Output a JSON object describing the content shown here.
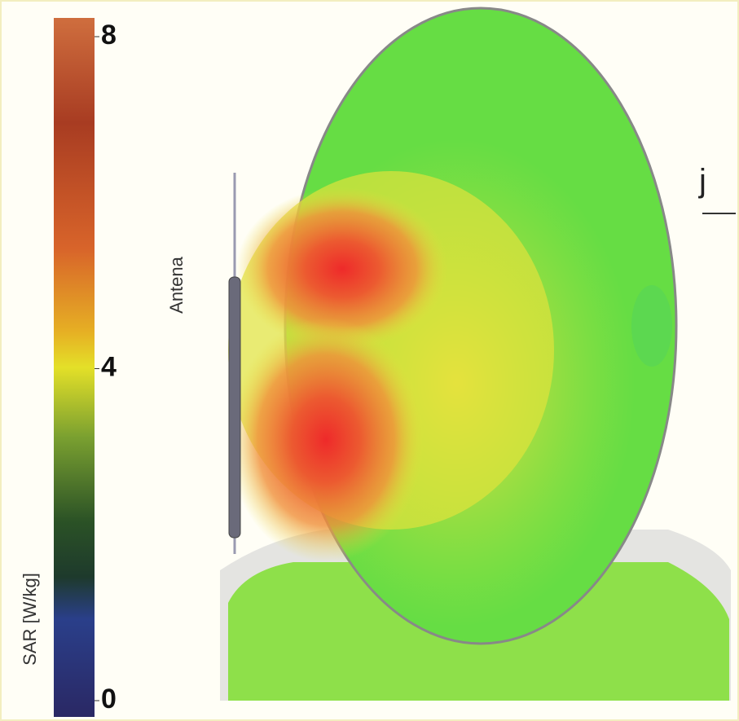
{
  "colorbar": {
    "label": "SAR [W/kg]",
    "range": [
      0,
      8
    ],
    "ticks": [
      0,
      4,
      8
    ]
  },
  "antenna_label": "Antena",
  "axis_label": "j"
}
